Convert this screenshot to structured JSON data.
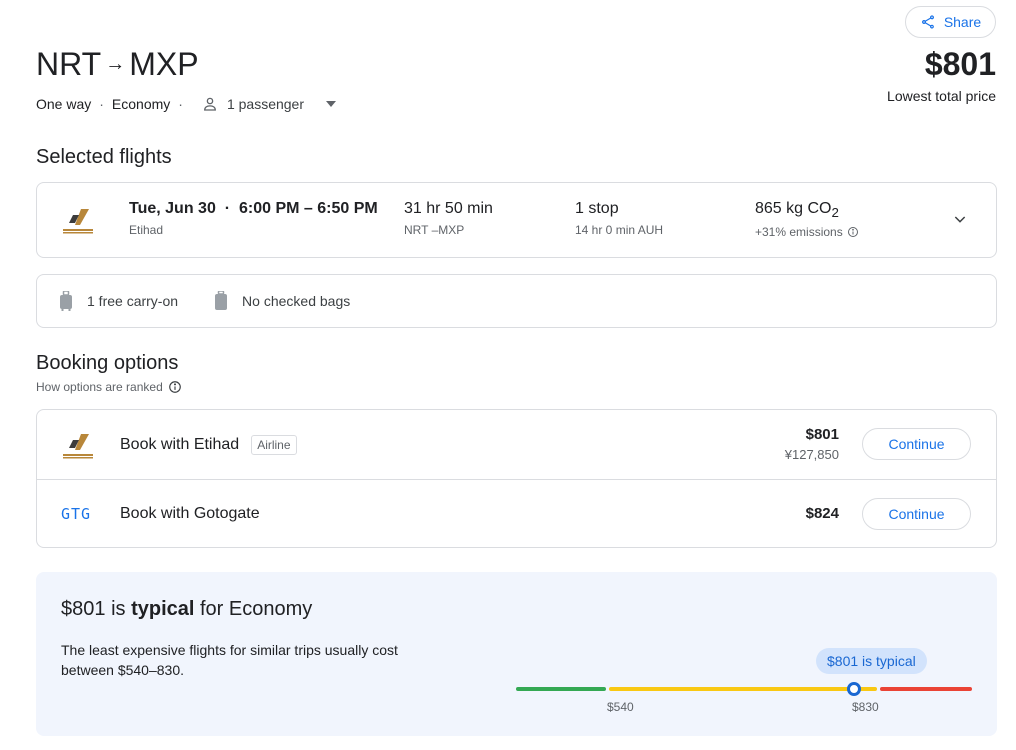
{
  "header": {
    "share_label": "Share",
    "origin": "NRT",
    "arrow": "→",
    "destination": "MXP",
    "trip_type": "One way",
    "cabin": "Economy",
    "passengers": "1 passenger",
    "price": "$801",
    "price_caption": "Lowest total price"
  },
  "selected": {
    "title": "Selected flights",
    "flight": {
      "date": "Tue, Jun 30",
      "times": "6:00 PM – 6:50 PM",
      "airline": "Etihad",
      "duration": "31 hr 50 min",
      "route": "NRT –MXP",
      "stops": "1 stop",
      "layover": "14 hr 0 min AUH",
      "emissions_value": "865 kg CO",
      "emissions_sub": "2",
      "emissions_note": "+31% emissions"
    },
    "bags": {
      "carry_on": "1 free carry-on",
      "checked": "No checked bags"
    }
  },
  "booking": {
    "title": "Booking options",
    "ranked_label": "How options are ranked",
    "options": [
      {
        "name": "Book with Etihad",
        "badge": "Airline",
        "price": "$801",
        "price_alt": "¥127,850",
        "button": "Continue"
      },
      {
        "name": "Book with Gotogate",
        "logo_text": "GTG",
        "price": "$824",
        "button": "Continue"
      }
    ]
  },
  "insight": {
    "price": "$801",
    "is_word": "is",
    "level": "typical",
    "for_cabin": "for Economy",
    "description": "The least expensive flights for similar trips usually cost between $540–830.",
    "bubble": "$801 is typical",
    "tick_low": "$540",
    "tick_high": "$830",
    "colors": {
      "low": "#34a853",
      "typical": "#f9c812",
      "high": "#ea4335"
    }
  }
}
